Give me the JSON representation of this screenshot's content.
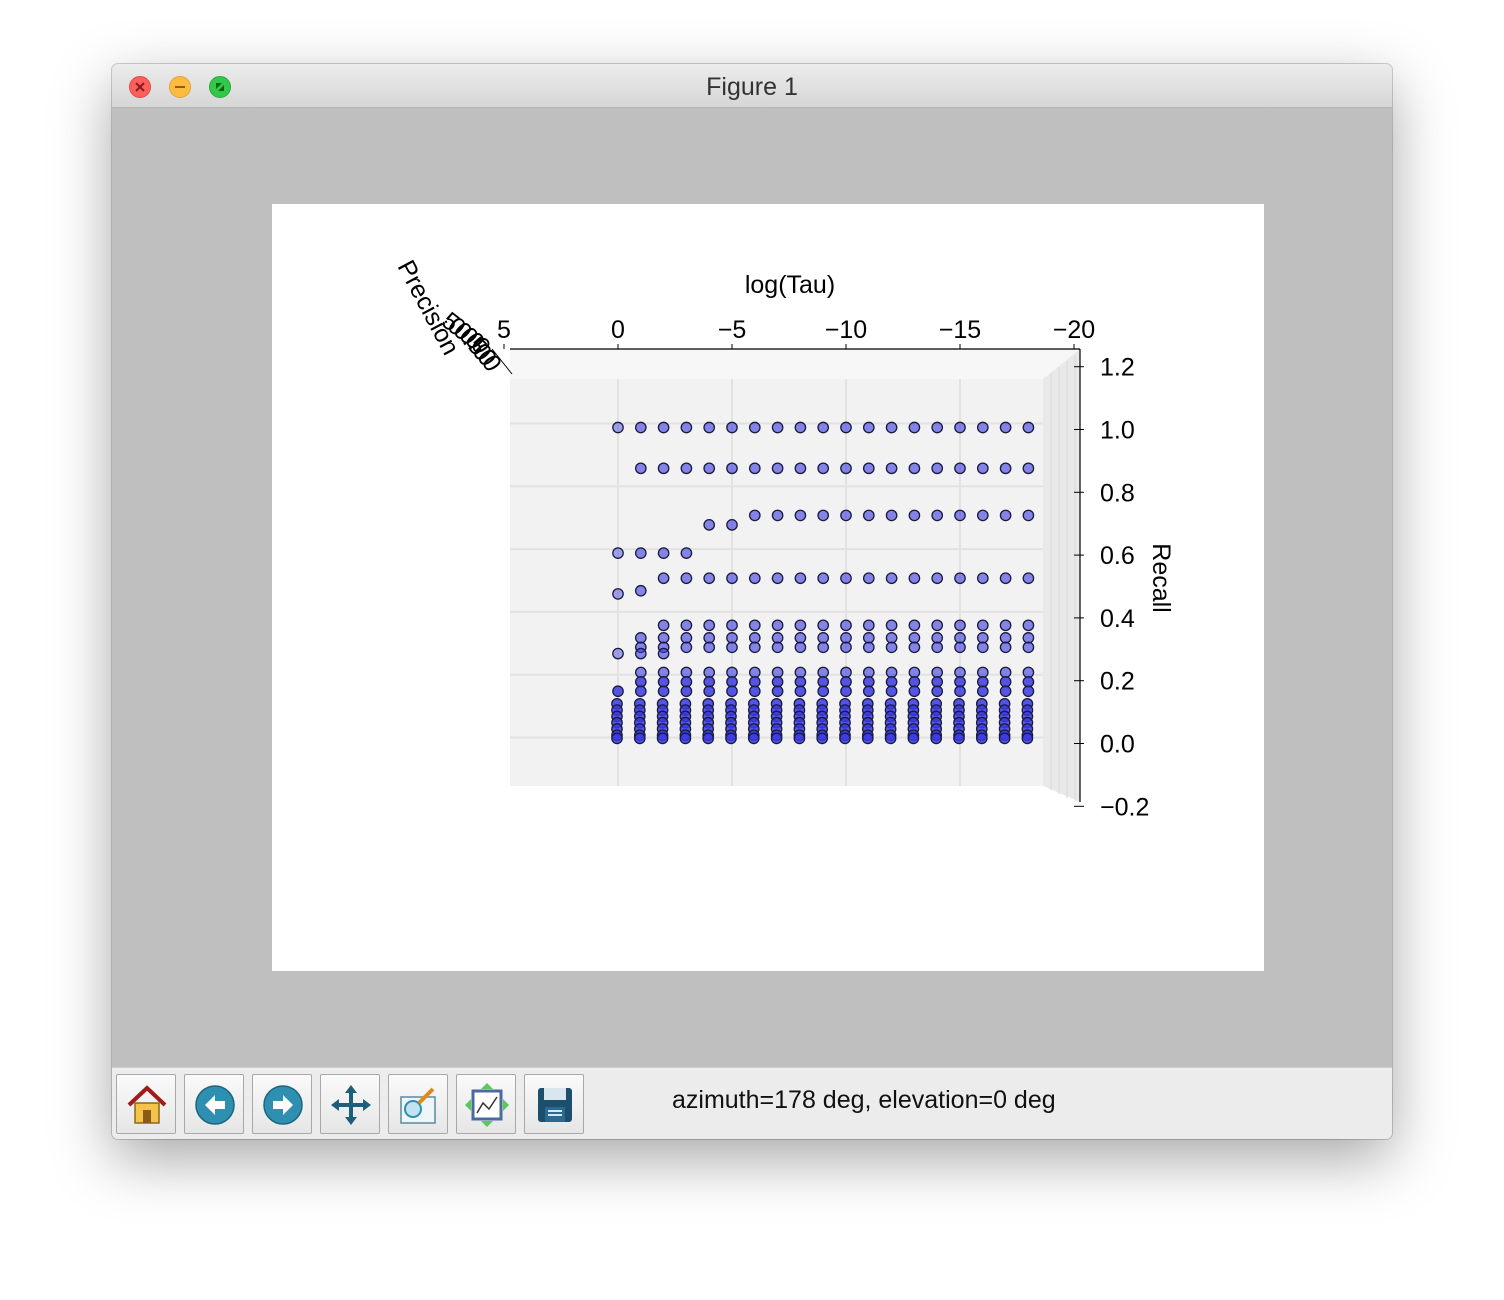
{
  "window": {
    "title": "Figure 1"
  },
  "toolbar": {
    "buttons": [
      {
        "name": "home-button",
        "icon": "home-icon"
      },
      {
        "name": "back-button",
        "icon": "back-arrow-icon"
      },
      {
        "name": "forward-button",
        "icon": "forward-arrow-icon"
      },
      {
        "name": "pan-button",
        "icon": "move-arrows-icon"
      },
      {
        "name": "zoom-button",
        "icon": "zoom-rect-icon"
      },
      {
        "name": "configure-subplots-button",
        "icon": "subplots-icon"
      },
      {
        "name": "save-button",
        "icon": "floppy-disk-icon"
      }
    ],
    "status": "azimuth=178 deg, elevation=0 deg"
  },
  "chart_data": {
    "type": "scatter",
    "projection": "3d",
    "title": "",
    "xlabel": "log(Tau)",
    "ylabel": "Precision",
    "zlabel": "Recall",
    "x_ticks": [
      "5",
      "0",
      "−5",
      "−10",
      "−15",
      "−20"
    ],
    "x_tick_values": [
      5,
      0,
      -5,
      -10,
      -15,
      -20
    ],
    "z_ticks": [
      "1.2",
      "1.0",
      "0.8",
      "0.6",
      "0.4",
      "0.2",
      "0.0",
      "−0.2"
    ],
    "z_tick_values": [
      1.2,
      1.0,
      0.8,
      0.6,
      0.4,
      0.2,
      0.0,
      -0.2
    ],
    "xlim": [
      5,
      -20
    ],
    "zlim": [
      -0.2,
      1.2
    ],
    "grid": true,
    "marker_color": "#3a3ae0",
    "x_values": [
      0,
      -1,
      -2,
      -3,
      -4,
      -5,
      -6,
      -7,
      -8,
      -9,
      -10,
      -11,
      -12,
      -13,
      -14,
      -15,
      -16,
      -17,
      -18
    ],
    "rows": [
      {
        "recall": 1.0,
        "x_start": 0
      },
      {
        "recall": 0.87,
        "x_start": -1
      },
      {
        "recall": 0.72,
        "x_start": -6
      },
      {
        "recall": 0.69,
        "x_start": -4,
        "x_end": -5
      },
      {
        "recall": 0.6,
        "x_start": 0,
        "x_end": -3
      },
      {
        "recall": 0.52,
        "x_start": -2
      },
      {
        "recall": 0.48,
        "x_start": -1,
        "x_end": -1
      },
      {
        "recall": 0.47,
        "x_start": 0,
        "x_end": 0
      },
      {
        "recall": 0.37,
        "x_start": -2
      },
      {
        "recall": 0.33,
        "x_start": -1
      },
      {
        "recall": 0.3,
        "x_start": -1
      },
      {
        "recall": 0.28,
        "x_start": 0,
        "x_end": -2
      },
      {
        "recall": 0.22,
        "x_start": -1
      },
      {
        "recall": 0.19,
        "x_start": -1
      },
      {
        "recall": 0.16,
        "x_start": 0
      },
      {
        "recall": 0.12,
        "x_start": 0
      },
      {
        "recall": 0.1,
        "x_start": 0
      },
      {
        "recall": 0.08,
        "x_start": 0
      },
      {
        "recall": 0.06,
        "x_start": 0
      },
      {
        "recall": 0.04,
        "x_start": 0
      },
      {
        "recall": 0.02,
        "x_start": 0
      },
      {
        "recall": 0.01,
        "x_start": 0
      }
    ],
    "precision_ticks": [
      "5",
      "0",
      "0.5",
      "0.0",
      "0.0",
      "0.0"
    ]
  }
}
